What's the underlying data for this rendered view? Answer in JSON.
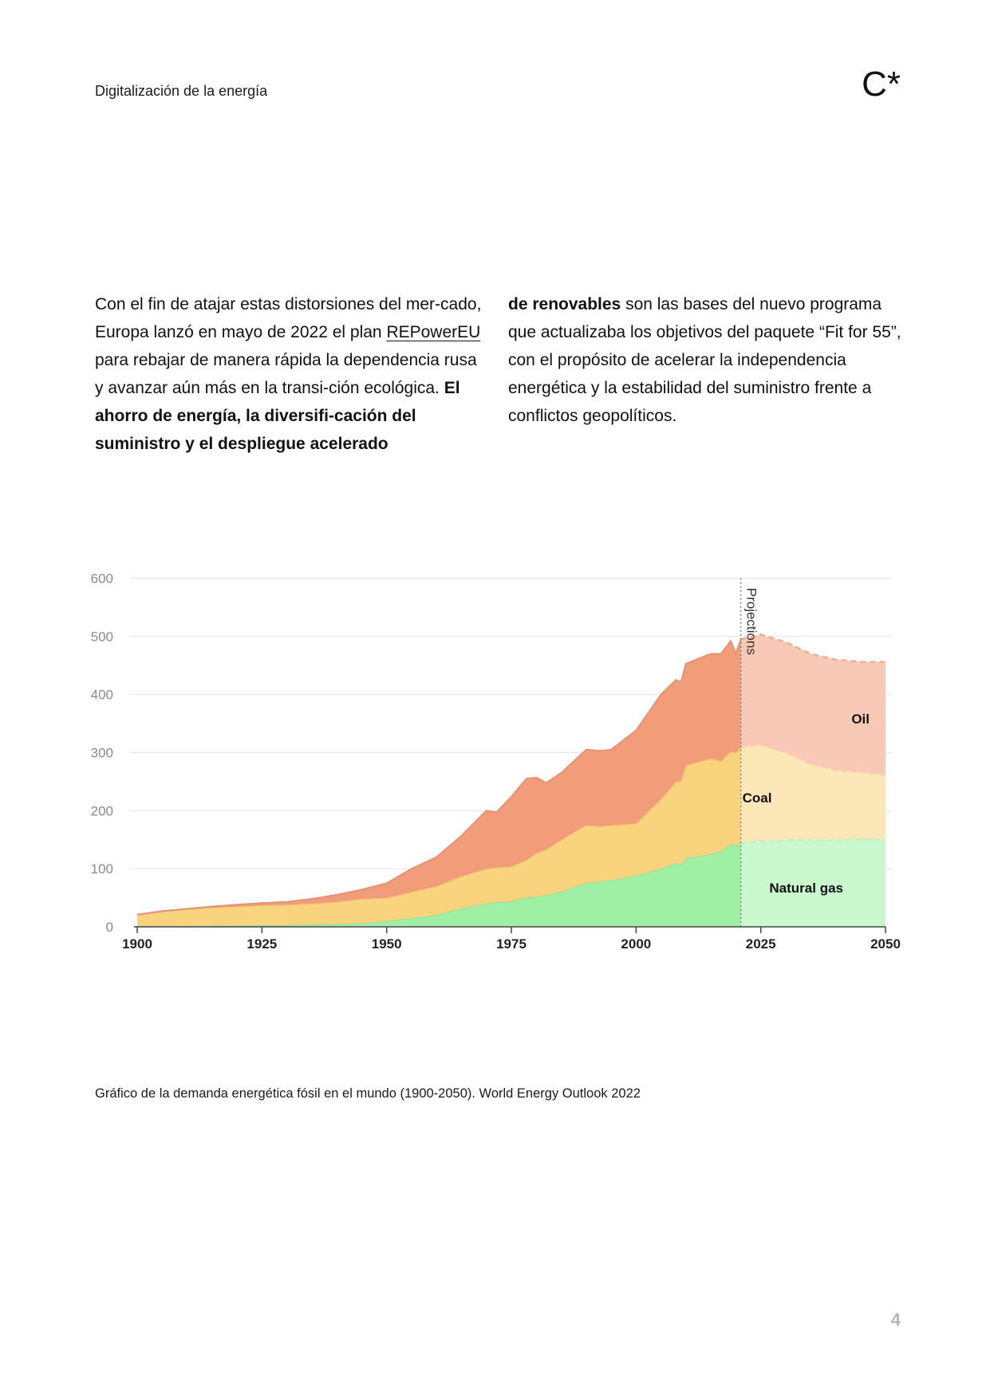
{
  "header": {
    "title": "Digitalización de la energía",
    "logo": "C*"
  },
  "body_text": {
    "left": {
      "p1": "Con el fin de atajar estas distorsiones del mer-cado, Europa lanzó en mayo de 2022 el plan ",
      "link": "REPowerEU",
      "p2": " para rebajar de manera rápida la dependencia rusa y avanzar aún más en la transi-ción ecológica. ",
      "bold": "El ahorro de energía, la diversifi-cación del suministro y el despliegue acelerado"
    },
    "right": {
      "bold": "de renovables",
      "text": " son las bases del nuevo programa que actualizaba los objetivos del paquete “Fit for 55”, con el propósito de acelerar la independencia energética y la estabilidad del suministro frente a conflictos geopolíticos."
    }
  },
  "chart_data": {
    "type": "area",
    "stacked": true,
    "xlim": [
      1900,
      2050
    ],
    "ylim": [
      0,
      600
    ],
    "x_ticks": [
      "1900",
      "1925",
      "1950",
      "1975",
      "2000",
      "2025",
      "2050"
    ],
    "y_ticks": [
      "0",
      "100",
      "200",
      "300",
      "400",
      "500",
      "600"
    ],
    "grid": true,
    "projection_start": 2021,
    "projection_label": "Projections",
    "x": [
      1900,
      1905,
      1910,
      1915,
      1920,
      1925,
      1930,
      1935,
      1940,
      1945,
      1950,
      1955,
      1960,
      1965,
      1970,
      1972,
      1975,
      1978,
      1980,
      1982,
      1985,
      1990,
      1993,
      1995,
      2000,
      2005,
      2008,
      2009,
      2010,
      2015,
      2017,
      2019,
      2020,
      2021,
      2025,
      2030,
      2035,
      2040,
      2045,
      2050
    ],
    "series": [
      {
        "name": "Natural gas",
        "color": "#9ff0a4",
        "values": [
          1,
          1,
          1,
          2,
          2,
          3,
          3,
          4,
          5,
          6,
          10,
          15,
          20,
          32,
          40,
          42,
          44,
          50,
          52,
          55,
          60,
          75,
          78,
          80,
          88,
          100,
          110,
          106,
          118,
          125,
          130,
          142,
          140,
          145,
          148,
          150,
          150,
          150,
          151,
          151
        ]
      },
      {
        "name": "Coal",
        "color": "#f9d37e",
        "values": [
          20,
          25,
          29,
          31,
          33,
          34,
          35,
          36,
          38,
          42,
          40,
          45,
          50,
          55,
          60,
          60,
          60,
          65,
          75,
          78,
          90,
          100,
          95,
          95,
          90,
          120,
          140,
          145,
          160,
          165,
          155,
          160,
          160,
          165,
          165,
          150,
          130,
          120,
          115,
          110
        ]
      },
      {
        "name": "Oil",
        "color": "#f29c7a",
        "values": [
          0,
          1,
          1,
          2,
          3,
          4,
          5,
          8,
          12,
          16,
          25,
          40,
          50,
          70,
          100,
          95,
          120,
          140,
          130,
          115,
          115,
          130,
          130,
          130,
          160,
          180,
          175,
          170,
          175,
          180,
          185,
          190,
          170,
          185,
          190,
          190,
          190,
          190,
          190,
          195
        ]
      }
    ]
  },
  "caption": "Gráfico de la demanda energética fósil en el mundo (1900-2050). World Energy Outlook 2022",
  "page_number": "4"
}
